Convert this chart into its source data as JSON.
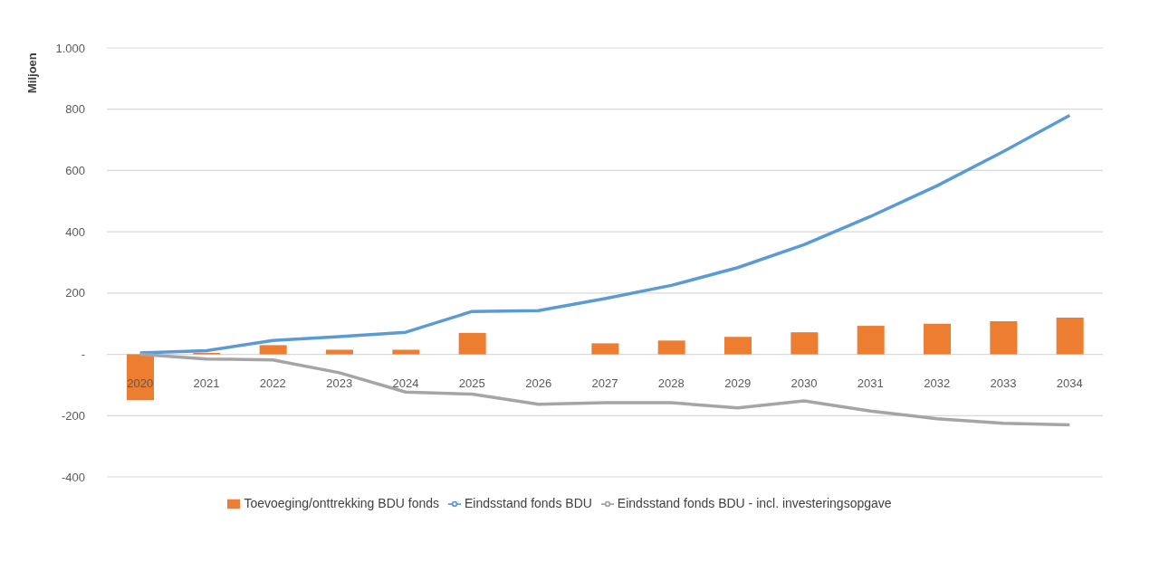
{
  "chart_data": {
    "type": "bar",
    "ylabel": "Miljoen",
    "categories": [
      "2020",
      "2021",
      "2022",
      "2023",
      "2024",
      "2025",
      "2026",
      "2027",
      "2028",
      "2029",
      "2030",
      "2031",
      "2032",
      "2033",
      "2034"
    ],
    "series": [
      {
        "name": "Toevoeging/onttrekking BDU fonds",
        "color": "#ed7d31",
        "values": [
          -150,
          5,
          30,
          15,
          15,
          70,
          0,
          36,
          45,
          57,
          72,
          93,
          100,
          108,
          120
        ]
      },
      {
        "name": "Eindsstand fonds BDU",
        "type": "line",
        "color": "#5b9bd5",
        "values": [
          5,
          12,
          45,
          58,
          72,
          140,
          143,
          182,
          225,
          283,
          358,
          450,
          550,
          662,
          780
        ]
      },
      {
        "name": "Eindsstand fonds BDU - incl. investeringsopgave",
        "type": "line",
        "color": "#a5a5a5",
        "values": [
          0,
          -15,
          -18,
          -60,
          -123,
          -130,
          -163,
          -158,
          -158,
          -175,
          -152,
          -185,
          -210,
          -225,
          -230
        ]
      }
    ],
    "ylim": [
      -400,
      1000
    ],
    "yticks": [
      -400,
      -200,
      {
        "value": 0,
        "label": "-"
      },
      200,
      400,
      600,
      800,
      {
        "value": 1000,
        "label": "1.000"
      }
    ],
    "grid": "y",
    "legend": "bottom",
    "marker": "none",
    "line_style": "solid"
  }
}
